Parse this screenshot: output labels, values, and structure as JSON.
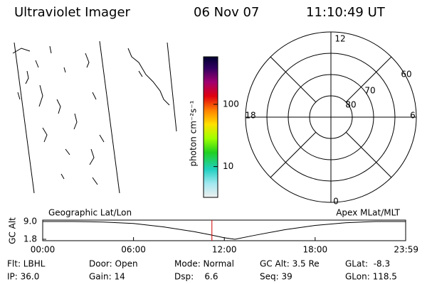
{
  "header": {
    "title": "Ultraviolet Imager",
    "date": "06 Nov 07",
    "time": "11:10:49 UT"
  },
  "left_panel_title": "Geographic Lat/Lon",
  "right_panel_title": "Apex MLat/MLT",
  "colorbar": {
    "label": "photon cm⁻²s⁻¹",
    "lim": [
      3.2,
      580
    ],
    "ticks": [
      10,
      100
    ],
    "log": true
  },
  "polar": {
    "lat_labels": [
      "60",
      "70",
      "80"
    ],
    "mlt_labels": {
      "noon": "12",
      "dusk": "18",
      "dawn": "6",
      "midnight": "0"
    }
  },
  "chart_data": {
    "type": "line",
    "ylabel": "GC Alt",
    "x": [
      0,
      2,
      4,
      6,
      8,
      10,
      11,
      12,
      12.7,
      14,
      16,
      18,
      20,
      22,
      23.98
    ],
    "series": [
      {
        "name": "GC Alt",
        "color": "#000000",
        "values": [
          9.0,
          9.0,
          8.8,
          8.2,
          6.8,
          4.9,
          3.7,
          2.4,
          1.8,
          3.4,
          5.7,
          7.4,
          8.5,
          9.0,
          9.0
        ]
      }
    ],
    "xlim": [
      0,
      23.98
    ],
    "xticks": [
      {
        "value": 0,
        "label": "00:00"
      },
      {
        "value": 6,
        "label": "06:00"
      },
      {
        "value": 12,
        "label": "12:00"
      },
      {
        "value": 18,
        "label": "18:00"
      },
      {
        "value": 23.98,
        "label": "23:59"
      }
    ],
    "ylim": [
      1.8,
      9.0
    ],
    "yticks": [
      {
        "value": 9.0,
        "label": "9.0"
      },
      1.8
    ],
    "cursor": 11.18,
    "cursor_color": "#d00000"
  },
  "footer": {
    "rows": [
      [
        "Flt: LBHL",
        "Door: Open",
        "Mode: Normal",
        "GC Alt: 3.5 Re",
        "GLat:  -8.3"
      ],
      [
        "IP: 36.0",
        "Gain: 14",
        "Dsp:    6.6",
        "Seq: 39",
        "GLon: 118.5"
      ]
    ]
  }
}
